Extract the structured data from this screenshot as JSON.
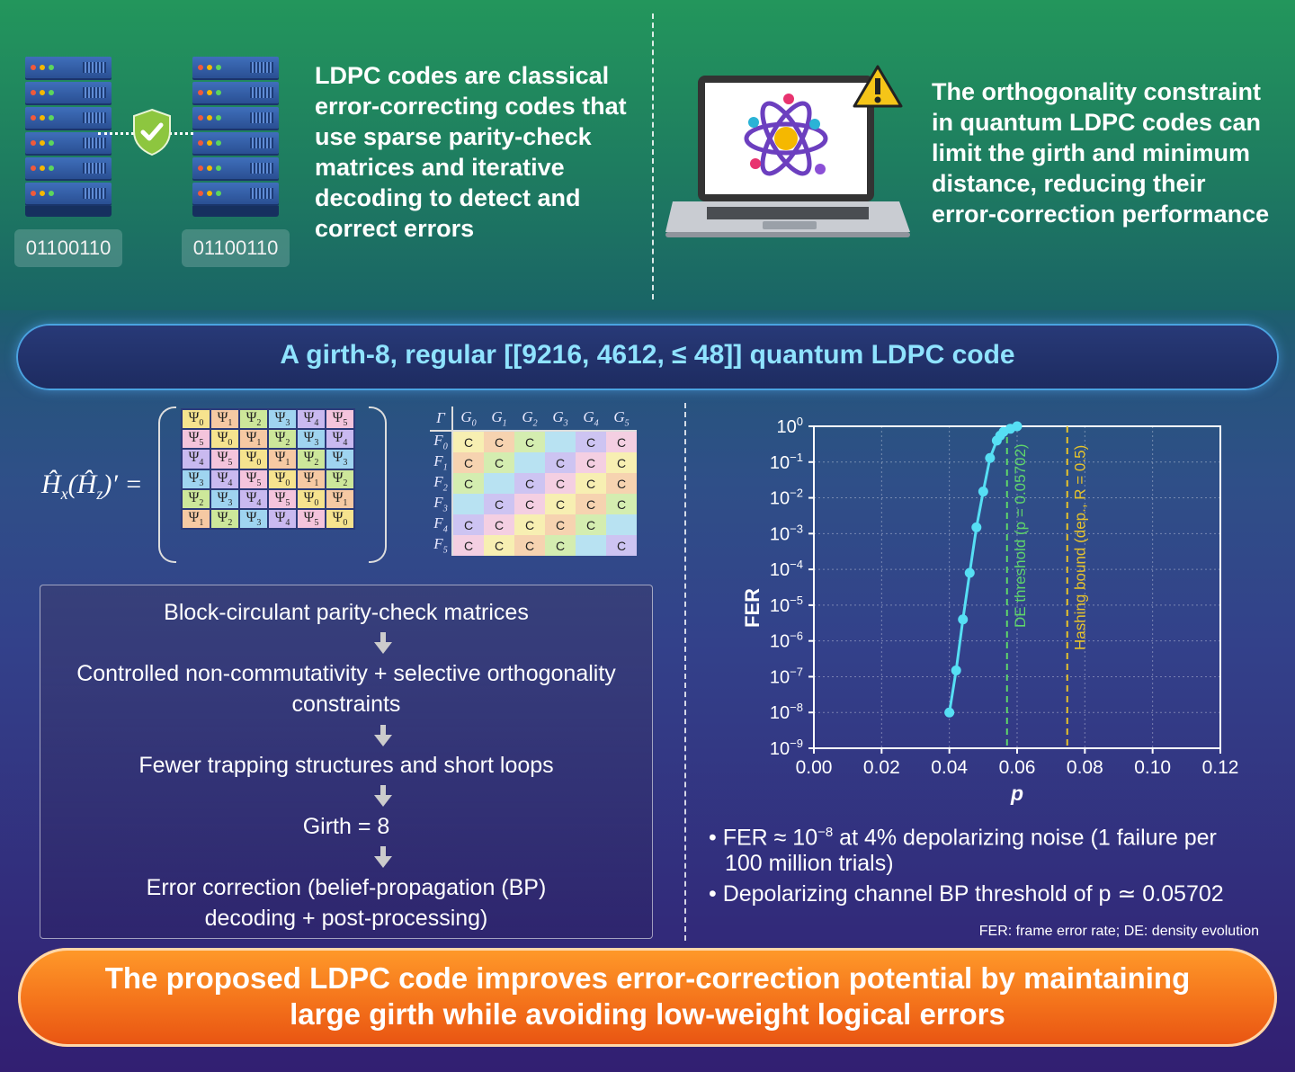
{
  "top_left": {
    "bits_left": "01100110",
    "bits_right": "01100110",
    "text_lines": [
      "LDPC codes are classical",
      "error-correcting codes that",
      "use sparse parity-check",
      "matrices and iterative",
      "decoding to detect and",
      "correct errors"
    ]
  },
  "top_right": {
    "text_lines": [
      "The orthogonality constraint",
      "in quantum LDPC codes can",
      "limit the girth and minimum",
      "distance, reducing their",
      "error-correction performance"
    ]
  },
  "title": "A girth-8, regular [[9216, 4612, ≤ 48]] quantum LDPC code",
  "matrix_label": "Ĥx(Ĥz)′ =",
  "psi_matrix": [
    [
      "Ψ0",
      "Ψ1",
      "Ψ2",
      "Ψ3",
      "Ψ4",
      "Ψ5"
    ],
    [
      "Ψ5",
      "Ψ0",
      "Ψ1",
      "Ψ2",
      "Ψ3",
      "Ψ4"
    ],
    [
      "Ψ4",
      "Ψ5",
      "Ψ0",
      "Ψ1",
      "Ψ2",
      "Ψ3"
    ],
    [
      "Ψ3",
      "Ψ4",
      "Ψ5",
      "Ψ0",
      "Ψ1",
      "Ψ2"
    ],
    [
      "Ψ2",
      "Ψ3",
      "Ψ4",
      "Ψ5",
      "Ψ0",
      "Ψ1"
    ],
    [
      "Ψ1",
      "Ψ2",
      "Ψ3",
      "Ψ4",
      "Ψ5",
      "Ψ0"
    ]
  ],
  "gamma_table": {
    "corner": "Γ",
    "cols": [
      "G0",
      "G1",
      "G2",
      "G3",
      "G4",
      "G5"
    ],
    "rows": [
      "F0",
      "F1",
      "F2",
      "F3",
      "F4",
      "F5"
    ],
    "cells": [
      [
        "C",
        "C",
        "C",
        "",
        "C",
        "C"
      ],
      [
        "C",
        "C",
        "",
        "C",
        "C",
        "C"
      ],
      [
        "C",
        "",
        "C",
        "C",
        "C",
        "C"
      ],
      [
        "",
        "C",
        "C",
        "C",
        "C",
        "C"
      ],
      [
        "C",
        "C",
        "C",
        "C",
        "C",
        ""
      ],
      [
        "C",
        "C",
        "C",
        "C",
        "",
        "C"
      ]
    ]
  },
  "flow": {
    "step1": "Block-circulant parity-check matrices",
    "step2a": "Controlled non-commutativity + selective orthogonality",
    "step2b": "constraints",
    "step3": "Fewer trapping structures and short loops",
    "step4": "Girth = 8",
    "step5a": "Error correction (belief-propagation (BP)",
    "step5b": "decoding + post-processing)"
  },
  "chart_data": {
    "type": "scatter",
    "ylabel": "FER",
    "xlabel": "p",
    "log_y": true,
    "xlim": [
      0,
      0.12
    ],
    "ylim": [
      1e-09,
      1
    ],
    "x_ticks": [
      "0.00",
      "0.02",
      "0.04",
      "0.06",
      "0.08",
      "0.10",
      "0.12"
    ],
    "y_ticks_exp": [
      "0",
      "−1",
      "−2",
      "−3",
      "−4",
      "−5",
      "−6",
      "−7",
      "−8",
      "−9"
    ],
    "y_tick_base": "10",
    "series": [
      {
        "x": [
          0.04,
          0.042,
          0.044,
          0.046,
          0.048,
          0.05,
          0.052,
          0.054,
          0.055,
          0.056,
          0.058,
          0.06
        ],
        "y": [
          1e-08,
          1.5e-07,
          4e-06,
          8e-05,
          0.0015,
          0.015,
          0.13,
          0.4,
          0.55,
          0.7,
          0.85,
          1.0
        ]
      }
    ],
    "vlines": [
      {
        "x": 0.05702,
        "label": "DE threshold (p = 0.05702)",
        "color": "#5fd66a"
      },
      {
        "x": 0.0748,
        "label": "Hashing bound (dep., R = 0.5)",
        "color": "#e8c42a"
      }
    ],
    "grid": true
  },
  "bullets": {
    "b1_line1": "• FER ≈ 10",
    "b1_sup": "−8",
    "b1_rest": " at 4% depolarizing noise (1 failure per",
    "b1_line2": "100 million trials)",
    "b2": "• Depolarizing channel BP threshold of p ≃ 0.05702"
  },
  "footnote": "FER: frame error rate; DE: density evolution",
  "bottom_line1": "The proposed LDPC code improves error-correction potential by maintaining",
  "bottom_line2": "large girth while avoiding low-weight logical errors",
  "colors": {
    "title_text": "#8fe3ff",
    "curve": "#56dff4",
    "banner": "#f4731b"
  }
}
